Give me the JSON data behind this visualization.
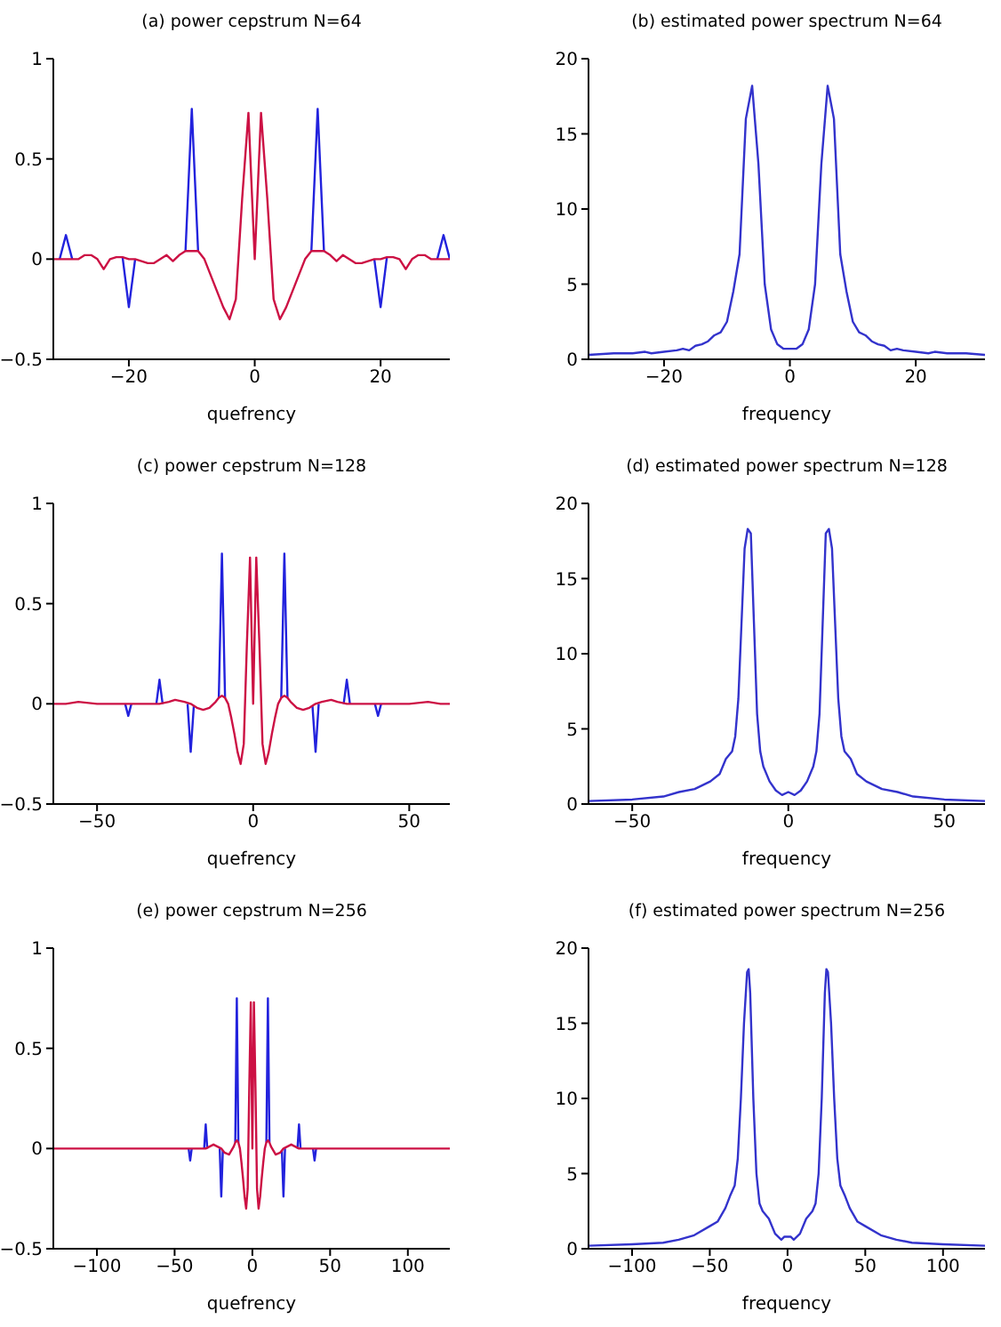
{
  "chart_data": [
    {
      "type": "line",
      "title": "(a) power cepstrum N=64",
      "xlabel": "quefrency",
      "xlim": [
        -32,
        31
      ],
      "xticks": [
        -20,
        0,
        20
      ],
      "ylim": [
        -0.5,
        1
      ],
      "yticks": [
        -0.5,
        0,
        0.5,
        1
      ],
      "series": [
        {
          "color": "#2222dd",
          "x": [
            -31,
            -30,
            -29,
            -25,
            -21,
            -20,
            -19,
            -15,
            -11,
            -10,
            -9,
            0,
            9,
            10,
            11,
            15,
            19,
            20,
            21,
            25,
            29,
            30,
            31
          ],
          "values": [
            0,
            0.12,
            0,
            null,
            0.01,
            -0.24,
            0,
            null,
            0.04,
            0.75,
            0.04,
            null,
            0.04,
            0.75,
            0.04,
            null,
            0,
            -0.24,
            0.01,
            null,
            0,
            0.12,
            0
          ]
        },
        {
          "color": "#cc1144",
          "x": [
            -32,
            -30,
            -28,
            -27,
            -26,
            -25,
            -24,
            -23,
            -22,
            -21,
            -20,
            -19,
            -17,
            -16,
            -15,
            -14,
            -13,
            -12,
            -11,
            -10,
            -9,
            -8,
            -7,
            -6,
            -5,
            -4,
            -3,
            -2,
            -1,
            0,
            1,
            2,
            3,
            4,
            5,
            6,
            7,
            8,
            9,
            10,
            11,
            12,
            13,
            14,
            15,
            16,
            17,
            19,
            20,
            21,
            22,
            23,
            24,
            25,
            26,
            27,
            28,
            30,
            31
          ],
          "values": [
            0,
            0,
            0,
            0.02,
            0.02,
            0,
            -0.05,
            0,
            0.01,
            0.01,
            0,
            0,
            -0.02,
            -0.02,
            0,
            0.02,
            -0.01,
            0.02,
            0.04,
            0.04,
            0.04,
            0,
            -0.08,
            -0.16,
            -0.24,
            -0.3,
            -0.2,
            0.3,
            0.73,
            0,
            0.73,
            0.3,
            -0.2,
            -0.3,
            -0.24,
            -0.16,
            -0.08,
            0,
            0.04,
            0.04,
            0.04,
            0.02,
            -0.01,
            0.02,
            0,
            -0.02,
            -0.02,
            0,
            0,
            0.01,
            0.01,
            0,
            -0.05,
            0,
            0.02,
            0.02,
            0,
            0,
            0
          ]
        }
      ]
    },
    {
      "type": "line",
      "title": "(b) estimated power spectrum N=64",
      "xlabel": "frequency",
      "xlim": [
        -32,
        31
      ],
      "xticks": [
        -20,
        0,
        20
      ],
      "ylim": [
        0,
        20
      ],
      "yticks": [
        0,
        5,
        10,
        15,
        20
      ],
      "series": [
        {
          "color": "#3333cc",
          "x": [
            -32,
            -28,
            -25,
            -23,
            -22,
            -20,
            -18,
            -17,
            -16,
            -15,
            -14,
            -13,
            -12,
            -11,
            -10,
            -9,
            -8,
            -7,
            -6,
            -5,
            -4,
            -3,
            -2,
            -1,
            0,
            1,
            2,
            3,
            4,
            5,
            6,
            7,
            8,
            9,
            10,
            11,
            12,
            13,
            14,
            15,
            16,
            17,
            18,
            20,
            22,
            23,
            25,
            28,
            31
          ],
          "values": [
            0.3,
            0.4,
            0.4,
            0.5,
            0.4,
            0.5,
            0.6,
            0.7,
            0.6,
            0.9,
            1,
            1.2,
            1.6,
            1.8,
            2.5,
            4.5,
            7,
            16,
            18.2,
            13,
            5,
            2,
            1,
            0.7,
            0.7,
            0.7,
            1,
            2,
            5,
            13,
            18.2,
            16,
            7,
            4.5,
            2.5,
            1.8,
            1.6,
            1.2,
            1,
            0.9,
            0.6,
            0.7,
            0.6,
            0.5,
            0.4,
            0.5,
            0.4,
            0.4,
            0.3
          ]
        }
      ]
    },
    {
      "type": "line",
      "title": "(c) power cepstrum N=128",
      "xlabel": "quefrency",
      "xlim": [
        -64,
        63
      ],
      "xticks": [
        -50,
        0,
        50
      ],
      "ylim": [
        -0.5,
        1
      ],
      "yticks": [
        -0.5,
        0,
        0.5,
        1
      ],
      "series": [
        {
          "color": "#2222dd",
          "x": [
            -41,
            -40,
            -39,
            -35,
            -31,
            -30,
            -29,
            -25,
            -21,
            -20,
            -19,
            -15,
            -11,
            -10,
            -9,
            0,
            9,
            10,
            11,
            15,
            19,
            20,
            21,
            25,
            29,
            30,
            31,
            35,
            39,
            40,
            41
          ],
          "values": [
            0,
            -0.06,
            0,
            null,
            0,
            0.12,
            0,
            null,
            0,
            -0.24,
            -0.01,
            null,
            0.03,
            0.75,
            0.03,
            null,
            0.03,
            0.75,
            0.03,
            null,
            -0.01,
            -0.24,
            0,
            null,
            0,
            0.12,
            0,
            null,
            0,
            -0.06,
            0
          ]
        },
        {
          "color": "#cc1144",
          "x": [
            -64,
            -60,
            -56,
            -50,
            -45,
            -40,
            -35,
            -30,
            -27,
            -25,
            -22,
            -20,
            -18,
            -16,
            -14,
            -12,
            -11,
            -10,
            -9,
            -8,
            -7,
            -6,
            -5,
            -4,
            -3,
            -2,
            -1,
            0,
            1,
            2,
            3,
            4,
            5,
            6,
            7,
            8,
            9,
            10,
            11,
            12,
            14,
            16,
            18,
            20,
            22,
            25,
            27,
            30,
            35,
            40,
            45,
            50,
            56,
            60,
            63
          ],
          "values": [
            0,
            0,
            0.01,
            0,
            0,
            0,
            0,
            0,
            0.01,
            0.02,
            0.01,
            0,
            -0.02,
            -0.03,
            -0.02,
            0.01,
            0.03,
            0.04,
            0.03,
            0,
            -0.07,
            -0.15,
            -0.24,
            -0.3,
            -0.2,
            0.3,
            0.73,
            0,
            0.73,
            0.3,
            -0.2,
            -0.3,
            -0.24,
            -0.15,
            -0.07,
            0,
            0.03,
            0.04,
            0.03,
            0.01,
            -0.02,
            -0.03,
            -0.02,
            0,
            0.01,
            0.02,
            0.01,
            0,
            0,
            0,
            0,
            0,
            0.01,
            0,
            0
          ]
        }
      ]
    },
    {
      "type": "line",
      "title": "(d) estimated power spectrum N=128",
      "xlabel": "frequency",
      "xlim": [
        -64,
        63
      ],
      "xticks": [
        -50,
        0,
        50
      ],
      "ylim": [
        0,
        20
      ],
      "yticks": [
        0,
        5,
        10,
        15,
        20
      ],
      "series": [
        {
          "color": "#3333cc",
          "x": [
            -64,
            -50,
            -40,
            -35,
            -30,
            -25,
            -22,
            -20,
            -18,
            -17,
            -16,
            -15,
            -14,
            -13,
            -12,
            -11,
            -10,
            -9,
            -8,
            -6,
            -4,
            -2,
            0,
            2,
            4,
            6,
            8,
            9,
            10,
            11,
            12,
            13,
            14,
            15,
            16,
            17,
            18,
            20,
            22,
            25,
            30,
            35,
            40,
            50,
            63
          ],
          "values": [
            0.2,
            0.3,
            0.5,
            0.8,
            1,
            1.5,
            2,
            3,
            3.5,
            4.5,
            7,
            12,
            17,
            18.3,
            18,
            12,
            6,
            3.5,
            2.5,
            1.5,
            0.9,
            0.6,
            0.8,
            0.6,
            0.9,
            1.5,
            2.5,
            3.5,
            6,
            12,
            18,
            18.3,
            17,
            12,
            7,
            4.5,
            3.5,
            3,
            2,
            1.5,
            1,
            0.8,
            0.5,
            0.3,
            0.2
          ]
        }
      ]
    },
    {
      "type": "line",
      "title": "(e) power cepstrum N=256",
      "xlabel": "quefrency",
      "xlim": [
        -128,
        127
      ],
      "xticks": [
        -100,
        -50,
        0,
        50,
        100
      ],
      "ylim": [
        -0.5,
        1
      ],
      "yticks": [
        -0.5,
        0,
        0.5,
        1
      ],
      "series": [
        {
          "color": "#2222dd",
          "x": [
            -41,
            -40,
            -39,
            -35,
            -31,
            -30,
            -29,
            -25,
            -21,
            -20,
            -19,
            -15,
            -11,
            -10,
            -9,
            0,
            9,
            10,
            11,
            15,
            19,
            20,
            21,
            25,
            29,
            30,
            31,
            35,
            39,
            40,
            41
          ],
          "values": [
            0,
            -0.06,
            0,
            null,
            0,
            0.12,
            0,
            null,
            0,
            -0.24,
            -0.01,
            null,
            0.03,
            0.75,
            0.03,
            null,
            0.03,
            0.75,
            0.03,
            null,
            -0.01,
            -0.24,
            0,
            null,
            0,
            0.12,
            0,
            null,
            0,
            -0.06,
            0
          ]
        },
        {
          "color": "#cc1144",
          "x": [
            -128,
            -90,
            -60,
            -40,
            -30,
            -25,
            -20,
            -18,
            -15,
            -12,
            -11,
            -10,
            -9,
            -8,
            -7,
            -6,
            -5,
            -4,
            -3,
            -2,
            -1,
            0,
            1,
            2,
            3,
            4,
            5,
            6,
            7,
            8,
            9,
            10,
            11,
            12,
            15,
            18,
            20,
            25,
            30,
            40,
            60,
            90,
            127
          ],
          "values": [
            0,
            0,
            0,
            0,
            0,
            0.02,
            0,
            -0.02,
            -0.03,
            0.01,
            0.03,
            0.04,
            0.03,
            0,
            -0.07,
            -0.15,
            -0.24,
            -0.3,
            -0.2,
            0.3,
            0.73,
            0,
            0.73,
            0.3,
            -0.2,
            -0.3,
            -0.24,
            -0.15,
            -0.07,
            0,
            0.03,
            0.04,
            0.03,
            0.01,
            -0.03,
            -0.02,
            0,
            0.02,
            0,
            0,
            0,
            0,
            0
          ]
        }
      ]
    },
    {
      "type": "line",
      "title": "(f) estimated power spectrum N=256",
      "xlabel": "frequency",
      "xlim": [
        -128,
        127
      ],
      "xticks": [
        -100,
        -50,
        0,
        50,
        100
      ],
      "ylim": [
        0,
        20
      ],
      "yticks": [
        0,
        5,
        10,
        15,
        20
      ],
      "series": [
        {
          "color": "#3333cc",
          "x": [
            -128,
            -100,
            -80,
            -70,
            -60,
            -50,
            -45,
            -40,
            -37,
            -34,
            -32,
            -30,
            -28,
            -26,
            -25,
            -24,
            -22,
            -20,
            -18,
            -16,
            -12,
            -8,
            -4,
            -2,
            0,
            2,
            4,
            8,
            12,
            16,
            18,
            20,
            22,
            24,
            25,
            26,
            28,
            30,
            32,
            34,
            37,
            40,
            45,
            50,
            60,
            70,
            80,
            100,
            127
          ],
          "values": [
            0.2,
            0.3,
            0.4,
            0.6,
            0.9,
            1.5,
            1.8,
            2.7,
            3.5,
            4.2,
            6,
            10,
            15,
            18.4,
            18.6,
            17,
            10,
            5,
            3,
            2.5,
            2,
            1,
            0.6,
            0.8,
            0.8,
            0.8,
            0.6,
            1,
            2,
            2.5,
            3,
            5,
            10,
            17,
            18.6,
            18.4,
            15,
            10,
            6,
            4.2,
            3.5,
            2.7,
            1.8,
            1.5,
            0.9,
            0.6,
            0.4,
            0.3,
            0.2
          ]
        }
      ]
    }
  ]
}
